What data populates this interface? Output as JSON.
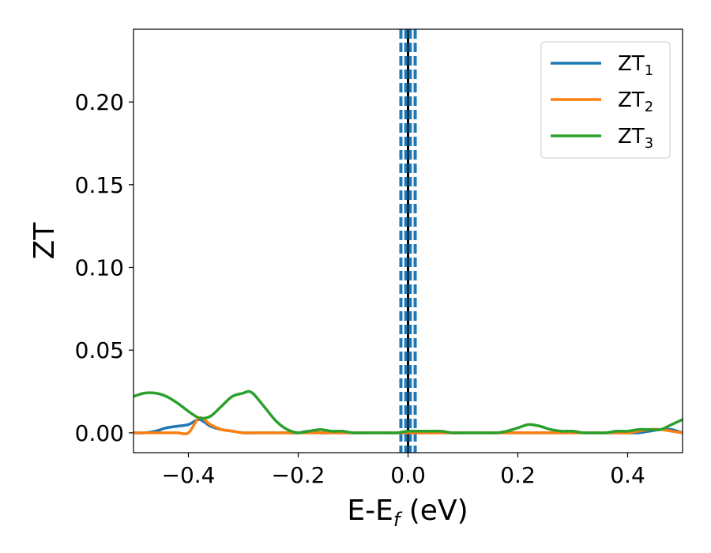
{
  "chart_data": {
    "type": "line",
    "xlabel_main": "E-E",
    "xlabel_sub": "f",
    "xlabel_unit": " (eV)",
    "ylabel": "ZT",
    "xlim": [
      -0.5,
      0.5
    ],
    "ylim": [
      -0.012,
      0.244
    ],
    "x_ticks": [
      -0.4,
      -0.2,
      0.0,
      0.2,
      0.4
    ],
    "x_tick_labels": [
      "−0.4",
      "−0.2",
      "0.0",
      "0.2",
      "0.4"
    ],
    "y_ticks": [
      0.0,
      0.05,
      0.1,
      0.15,
      0.2
    ],
    "y_tick_labels": [
      "0.00",
      "0.05",
      "0.10",
      "0.15",
      "0.20"
    ],
    "grid": false,
    "legend_position": "top-right",
    "vlines": [
      {
        "x": 0.0,
        "style": "solid",
        "color": "#000000"
      },
      {
        "x": -0.013,
        "style": "dashed",
        "color": "#1f77b4"
      },
      {
        "x": -0.004,
        "style": "dashed",
        "color": "#1f77b4"
      },
      {
        "x": 0.004,
        "style": "dashed",
        "color": "#1f77b4"
      },
      {
        "x": 0.013,
        "style": "dashed",
        "color": "#1f77b4"
      }
    ],
    "series": [
      {
        "name": "ZT",
        "sub": "1",
        "color": "#1f77b4",
        "x": [
          -0.5,
          -0.48,
          -0.46,
          -0.44,
          -0.42,
          -0.4,
          -0.38,
          -0.36,
          -0.34,
          -0.32,
          -0.3,
          -0.28,
          -0.26,
          -0.24,
          -0.22,
          -0.2,
          -0.18,
          -0.16,
          -0.14,
          -0.12,
          -0.1,
          -0.08,
          -0.06,
          -0.04,
          -0.02,
          0.0,
          0.02,
          0.04,
          0.06,
          0.08,
          0.1,
          0.12,
          0.14,
          0.16,
          0.18,
          0.2,
          0.22,
          0.24,
          0.26,
          0.28,
          0.3,
          0.32,
          0.34,
          0.36,
          0.38,
          0.4,
          0.42,
          0.44,
          0.46,
          0.48,
          0.5
        ],
        "y": [
          0.0,
          0.0,
          0.001,
          0.003,
          0.004,
          0.005,
          0.008,
          0.004,
          0.002,
          0.001,
          0.0,
          0.0,
          0.0,
          0.0,
          0.0,
          0.0,
          0.001,
          0.0,
          0.0,
          0.0,
          0.0,
          0.0,
          0.0,
          0.0,
          0.0,
          0.0,
          0.0,
          0.0,
          0.0,
          0.0,
          0.0,
          0.0,
          0.0,
          0.0,
          0.0,
          0.0,
          0.0,
          0.0,
          0.0,
          0.0,
          0.0,
          0.0,
          0.0,
          0.0,
          0.0,
          0.0,
          0.0,
          0.001,
          0.002,
          0.002,
          0.0
        ]
      },
      {
        "name": "ZT",
        "sub": "2",
        "color": "#ff7f0e",
        "x": [
          -0.5,
          -0.48,
          -0.46,
          -0.44,
          -0.42,
          -0.4,
          -0.38,
          -0.36,
          -0.34,
          -0.32,
          -0.3,
          -0.28,
          -0.26,
          -0.24,
          -0.22,
          -0.2,
          -0.18,
          -0.16,
          -0.14,
          -0.12,
          -0.1,
          -0.08,
          -0.06,
          -0.04,
          -0.02,
          0.0,
          0.02,
          0.04,
          0.06,
          0.08,
          0.1,
          0.12,
          0.14,
          0.16,
          0.18,
          0.2,
          0.22,
          0.24,
          0.26,
          0.28,
          0.3,
          0.32,
          0.34,
          0.36,
          0.38,
          0.4,
          0.42,
          0.44,
          0.46,
          0.48,
          0.5
        ],
        "y": [
          0.0,
          0.0,
          0.0,
          0.0,
          0.0,
          0.0,
          0.009,
          0.005,
          0.002,
          0.001,
          0.0,
          0.0,
          0.0,
          0.0,
          0.0,
          0.0,
          0.0,
          0.0,
          0.0,
          0.0,
          0.0,
          0.0,
          0.0,
          0.0,
          0.0,
          0.0,
          0.0,
          0.0,
          0.0,
          0.0,
          0.0,
          0.0,
          0.0,
          0.0,
          0.0,
          0.0,
          0.0,
          0.0,
          0.0,
          0.0,
          0.0,
          0.0,
          0.0,
          0.0,
          0.0,
          0.0,
          0.001,
          0.002,
          0.002,
          0.001,
          0.0
        ]
      },
      {
        "name": "ZT",
        "sub": "3",
        "color": "#2ca02c",
        "x": [
          -0.5,
          -0.48,
          -0.46,
          -0.44,
          -0.42,
          -0.4,
          -0.38,
          -0.36,
          -0.34,
          -0.32,
          -0.3,
          -0.29,
          -0.28,
          -0.26,
          -0.24,
          -0.22,
          -0.2,
          -0.18,
          -0.16,
          -0.14,
          -0.12,
          -0.1,
          -0.08,
          -0.06,
          -0.04,
          -0.02,
          0.0,
          0.02,
          0.04,
          0.06,
          0.08,
          0.1,
          0.12,
          0.14,
          0.16,
          0.18,
          0.2,
          0.22,
          0.24,
          0.26,
          0.28,
          0.3,
          0.32,
          0.34,
          0.36,
          0.38,
          0.4,
          0.42,
          0.44,
          0.46,
          0.48,
          0.5
        ],
        "y": [
          0.022,
          0.024,
          0.024,
          0.022,
          0.018,
          0.013,
          0.009,
          0.01,
          0.016,
          0.022,
          0.024,
          0.025,
          0.023,
          0.015,
          0.007,
          0.002,
          0.0,
          0.001,
          0.002,
          0.001,
          0.001,
          0.0,
          0.0,
          0.0,
          0.0,
          0.0,
          0.001,
          0.001,
          0.001,
          0.001,
          0.0,
          0.0,
          0.0,
          0.0,
          0.0,
          0.001,
          0.003,
          0.005,
          0.004,
          0.002,
          0.001,
          0.001,
          0.0,
          0.0,
          0.0,
          0.001,
          0.001,
          0.002,
          0.002,
          0.002,
          0.005,
          0.008
        ]
      }
    ]
  }
}
